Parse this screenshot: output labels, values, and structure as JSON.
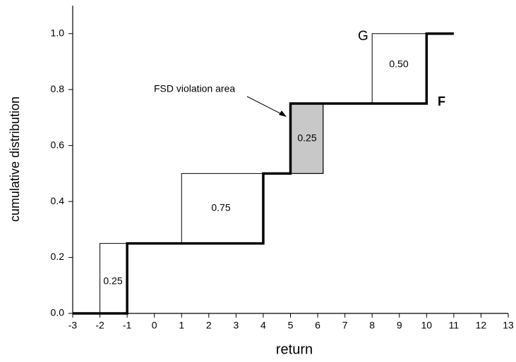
{
  "chart_data": {
    "type": "line",
    "xlabel": "return",
    "ylabel": "cumulative distribution",
    "series": [
      {
        "name": "F",
        "color": "#000000",
        "x": [
          -3,
          -1,
          -1,
          4,
          4,
          5,
          5,
          10,
          10,
          11
        ],
        "values": [
          0,
          0,
          0.25,
          0.25,
          0.5,
          0.5,
          0.75,
          0.75,
          1,
          1
        ]
      },
      {
        "name": "G",
        "color": "#000000",
        "x": [
          -3,
          -2,
          -2,
          1,
          1,
          6.2,
          6.2,
          8,
          8,
          10
        ],
        "values": [
          0,
          0,
          0.25,
          0.25,
          0.5,
          0.5,
          0.75,
          0.75,
          1,
          1
        ]
      }
    ],
    "shaded_area": {
      "x": [
        5,
        6.2
      ],
      "y": [
        0.5,
        0.75
      ],
      "color": "#c8c8c8"
    },
    "annotations": [
      "FSD violation area",
      "0.25",
      "0.75",
      "0.25",
      "0.50"
    ],
    "xlim": [
      -3,
      13
    ],
    "ylim": [
      0,
      1.1
    ],
    "xticks": [
      -3,
      -2,
      -1,
      0,
      1,
      2,
      3,
      4,
      5,
      6,
      7,
      8,
      9,
      10,
      11,
      12,
      13
    ],
    "yticks": [
      {
        "value": 0,
        "label": "0.0"
      },
      0.2,
      0.4,
      0.6,
      0.8,
      {
        "value": 1,
        "label": "1.0"
      }
    ],
    "grid": false
  }
}
